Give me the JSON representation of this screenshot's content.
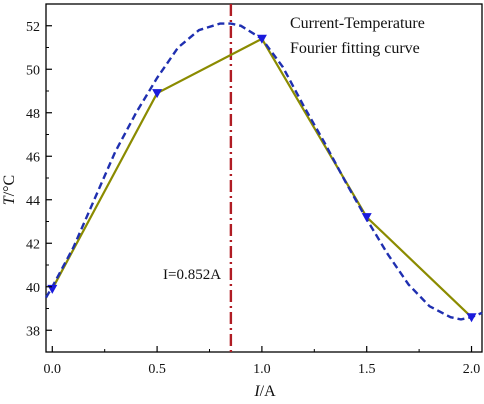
{
  "chart_data": {
    "type": "line",
    "xlabel_italic": "I",
    "xlabel_unit": "/A",
    "ylabel_italic": "T",
    "ylabel_unit": "/°C",
    "xlim": [
      -0.03,
      2.05
    ],
    "ylim": [
      37.0,
      53.0
    ],
    "xticks": [
      0.0,
      0.5,
      1.0,
      1.5,
      2.0
    ],
    "xtick_labels": [
      "0.0",
      "0.5",
      "1.0",
      "1.5",
      "2.0"
    ],
    "yticks": [
      38,
      40,
      42,
      44,
      46,
      48,
      50,
      52
    ],
    "ytick_labels": [
      "38",
      "40",
      "42",
      "44",
      "46",
      "48",
      "50",
      "52"
    ],
    "series": [
      {
        "name": "Current-Temperature",
        "style": "solid",
        "color": "#8B8B00",
        "marker_color": "#1a1adc",
        "x": [
          0.0,
          0.5,
          1.0,
          1.5,
          2.0
        ],
        "y": [
          39.9,
          48.9,
          51.4,
          43.2,
          38.6
        ]
      },
      {
        "name": "Fourier fitting curve",
        "style": "dashed",
        "color": "#1f2fb0",
        "x": [
          -0.03,
          0.0,
          0.1,
          0.2,
          0.3,
          0.4,
          0.5,
          0.6,
          0.7,
          0.8,
          0.852,
          0.9,
          1.0,
          1.1,
          1.2,
          1.3,
          1.4,
          1.5,
          1.6,
          1.7,
          1.8,
          1.9,
          1.95,
          2.0,
          2.05
        ],
        "y": [
          39.5,
          40.0,
          41.8,
          44.0,
          46.2,
          48.0,
          49.6,
          51.0,
          51.8,
          52.1,
          52.1,
          52.0,
          51.4,
          50.1,
          48.3,
          46.6,
          44.8,
          43.1,
          41.5,
          40.1,
          39.1,
          38.6,
          38.5,
          38.6,
          38.8
        ]
      }
    ],
    "vline": {
      "x": 0.852,
      "color": "#b01c24",
      "style": "dashdot"
    },
    "annotation": "I=0.852A"
  }
}
